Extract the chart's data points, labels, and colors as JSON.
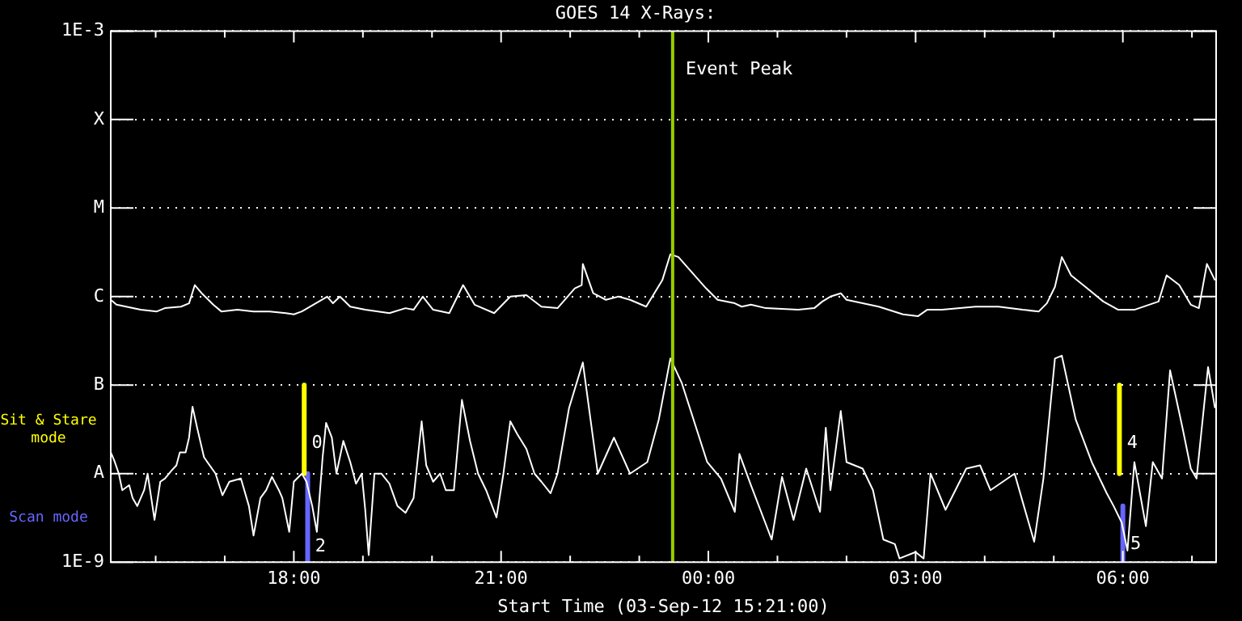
{
  "chart_data": {
    "type": "line",
    "title": "GOES 14 X-Rays:",
    "xlabel": "Start Time (03-Sep-12 15:21:00)",
    "xlim": [
      "--09-03T15:21",
      "--09-04T07:21"
    ],
    "xticks": [
      {
        "value": "--09-03T16:00",
        "label": null
      },
      {
        "value": "--09-03T17:00",
        "label": null
      },
      {
        "value": "--09-03T18:00",
        "label": "18:00"
      },
      {
        "value": "--09-03T19:00",
        "label": null
      },
      {
        "value": "--09-03T20:00",
        "label": null
      },
      {
        "value": "--09-03T21:00",
        "label": "21:00"
      },
      {
        "value": "--09-03T22:00",
        "label": null
      },
      {
        "value": "--09-03T23:00",
        "label": null
      },
      {
        "value": "--09-04T00:00",
        "label": "00:00"
      },
      {
        "value": "--09-04T01:00",
        "label": null
      },
      {
        "value": "--09-04T02:00",
        "label": null
      },
      {
        "value": "--09-04T03:00",
        "label": "03:00"
      },
      {
        "value": "--09-04T04:00",
        "label": null
      },
      {
        "value": "--09-04T05:00",
        "label": null
      },
      {
        "value": "--09-04T06:00",
        "label": "06:00"
      },
      {
        "value": "--09-04T07:00",
        "label": null
      }
    ],
    "ylim": [
      1e-09,
      0.001
    ],
    "yticks": [
      {
        "value": 1e-09,
        "label": "1E-9"
      },
      {
        "value": 1e-08,
        "label": "A"
      },
      {
        "value": 1e-07,
        "label": "B"
      },
      {
        "value": 1e-06,
        "label": "C"
      },
      {
        "value": 1e-05,
        "label": "M"
      },
      {
        "value": 0.0001,
        "label": "X"
      },
      {
        "value": 0.001,
        "label": "1E-3"
      }
    ],
    "log": true,
    "grid": "y",
    "marker": "none",
    "series": [
      {
        "color": "#ffffff",
        "x": [
          "--09-03T15:21",
          "--09-03T15:26",
          "--09-03T15:47",
          "--09-03T16:01",
          "--09-03T16:08",
          "--09-03T16:22",
          "--09-03T16:29",
          "--09-03T16:34",
          "--09-03T16:40",
          "--09-03T16:50",
          "--09-03T16:57",
          "--09-03T17:11",
          "--09-03T17:25",
          "--09-03T17:39",
          "--09-03T17:53",
          "--09-03T18:00",
          "--09-03T18:07",
          "--09-03T18:29",
          "--09-03T18:34",
          "--09-03T18:40",
          "--09-03T18:49",
          "--09-03T19:02",
          "--09-03T19:23",
          "--09-03T19:37",
          "--09-03T19:44",
          "--09-03T19:52",
          "--09-03T20:01",
          "--09-03T20:15",
          "--09-03T20:27",
          "--09-03T20:37",
          "--09-03T20:54",
          "--09-03T21:08",
          "--09-03T21:22",
          "--09-03T21:35",
          "--09-03T21:49",
          "--09-03T22:04",
          "--09-03T22:10",
          "--09-03T22:11",
          "--09-03T22:20",
          "--09-03T22:31",
          "--09-03T22:42",
          "--09-03T22:52",
          "--09-03T23:06",
          "--09-03T23:20",
          "--09-03T23:27",
          "--09-03T23:34",
          "--09-03T23:47",
          "--09-03T23:58",
          "--09-04T00:08",
          "--09-04T00:23",
          "--09-04T00:29",
          "--09-04T00:37",
          "--09-04T00:50",
          "--09-04T01:18",
          "--09-04T01:32",
          "--09-04T01:39",
          "--09-04T01:46",
          "--09-04T01:55",
          "--09-04T02:00",
          "--09-04T02:28",
          "--09-04T02:49",
          "--09-04T03:02",
          "--09-04T03:10",
          "--09-04T03:23",
          "--09-04T03:52",
          "--09-04T04:12",
          "--09-04T04:33",
          "--09-04T04:47",
          "--09-04T04:54",
          "--09-04T05:01",
          "--09-04T05:07",
          "--09-04T05:15",
          "--09-04T05:29",
          "--09-04T05:43",
          "--09-04T05:56",
          "--09-04T06:10",
          "--09-04T06:31",
          "--09-04T06:38",
          "--09-04T06:49",
          "--09-04T06:59",
          "--09-04T07:06",
          "--09-04T07:13",
          "--09-04T07:20"
        ],
        "values": [
          9.2e-07,
          8.1e-07,
          7.1e-07,
          6.8e-07,
          7.4e-07,
          7.7e-07,
          8.4e-07,
          1.35e-06,
          1.09e-06,
          8.1e-07,
          6.8e-07,
          7.1e-07,
          6.8e-07,
          6.8e-07,
          6.5e-07,
          6.3e-07,
          6.8e-07,
          1e-06,
          8.4e-07,
          1e-06,
          7.7e-07,
          7.1e-07,
          6.5e-07,
          7.4e-07,
          7.1e-07,
          1e-06,
          7.1e-07,
          6.5e-07,
          1.35e-06,
          8.1e-07,
          6.5e-07,
          1e-06,
          1.04e-06,
          7.7e-07,
          7.4e-07,
          1.24e-06,
          1.35e-06,
          2.34e-06,
          1.09e-06,
          9.2e-07,
          1e-06,
          9.2e-07,
          7.7e-07,
          1.53e-06,
          3e-06,
          2.8e-06,
          1.8e-06,
          1.24e-06,
          9.2e-07,
          8.4e-07,
          7.7e-07,
          8.1e-07,
          7.4e-07,
          7.1e-07,
          7.4e-07,
          8.8e-07,
          1e-06,
          1.09e-06,
          9.2e-07,
          7.7e-07,
          6.3e-07,
          6e-07,
          7.1e-07,
          7.1e-07,
          7.7e-07,
          7.7e-07,
          7.1e-07,
          6.8e-07,
          8.4e-07,
          1.29e-06,
          2.8e-06,
          1.74e-06,
          1.24e-06,
          8.8e-07,
          7.1e-07,
          7.1e-07,
          8.8e-07,
          1.74e-06,
          1.35e-06,
          8.1e-07,
          7.4e-07,
          2.34e-06,
          1.53e-06
        ]
      },
      {
        "color": "#ffffff",
        "x": [
          "--09-03T15:21",
          "--09-03T15:24",
          "--09-03T15:28",
          "--09-03T15:31",
          "--09-03T15:37",
          "--09-03T15:40",
          "--09-03T15:44",
          "--09-03T15:50",
          "--09-03T15:53",
          "--09-03T15:56",
          "--09-03T15:59",
          "--09-03T16:04",
          "--09-03T16:08",
          "--09-03T16:14",
          "--09-03T16:18",
          "--09-03T16:21",
          "--09-03T16:26",
          "--09-03T16:29",
          "--09-03T16:32",
          "--09-03T16:36",
          "--09-03T16:42",
          "--09-03T16:52",
          "--09-03T16:58",
          "--09-03T17:04",
          "--09-03T17:14",
          "--09-03T17:21",
          "--09-03T17:25",
          "--09-03T17:31",
          "--09-03T17:36",
          "--09-03T17:41",
          "--09-03T17:47",
          "--09-03T17:50",
          "--09-03T17:56",
          "--09-03T18:00",
          "--09-03T18:07",
          "--09-03T18:11",
          "--09-03T18:16",
          "--09-03T18:20",
          "--09-03T18:25",
          "--09-03T18:28",
          "--09-03T18:33",
          "--09-03T18:37",
          "--09-03T18:43",
          "--09-03T18:49",
          "--09-03T18:54",
          "--09-03T18:59",
          "--09-03T19:02",
          "--09-03T19:05",
          "--09-03T19:10",
          "--09-03T19:16",
          "--09-03T19:23",
          "--09-03T19:30",
          "--09-03T19:37",
          "--09-03T19:44",
          "--09-03T19:51",
          "--09-03T19:55",
          "--09-03T20:01",
          "--09-03T20:07",
          "--09-03T20:12",
          "--09-03T20:19",
          "--09-03T20:26",
          "--09-03T20:33",
          "--09-03T20:40",
          "--09-03T20:47",
          "--09-03T20:56",
          "--09-03T21:02",
          "--09-03T21:08",
          "--09-03T21:14",
          "--09-03T21:22",
          "--09-03T21:29",
          "--09-03T21:35",
          "--09-03T21:43",
          "--09-03T21:49",
          "--09-03T21:59",
          "--09-03T22:11",
          "--09-03T22:24",
          "--09-03T22:38",
          "--09-03T22:52",
          "--09-03T23:07",
          "--09-03T23:17",
          "--09-03T23:27",
          "--09-03T23:37",
          "--09-03T23:59",
          "--09-04T00:11",
          "--09-04T00:23",
          "--09-04T00:27",
          "--09-04T00:37",
          "--09-04T00:55",
          "--09-04T01:04",
          "--09-04T01:14",
          "--09-04T01:25",
          "--09-04T01:37",
          "--09-04T01:42",
          "--09-04T01:46",
          "--09-04T01:55",
          "--09-04T02:00",
          "--09-04T02:14",
          "--09-04T02:23",
          "--09-04T02:32",
          "--09-04T02:42",
          "--09-04T02:46",
          "--09-04T03:00",
          "--09-04T03:07",
          "--09-04T03:13",
          "--09-04T03:26",
          "--09-04T03:44",
          "--09-04T03:56",
          "--09-04T04:05",
          "--09-04T04:26",
          "--09-04T04:33",
          "--09-04T04:43",
          "--09-04T04:51",
          "--09-04T05:01",
          "--09-04T05:07",
          "--09-04T05:19",
          "--09-04T05:33",
          "--09-04T05:46",
          "--09-04T05:52",
          "--09-04T05:59",
          "--09-04T06:04",
          "--09-04T06:10",
          "--09-04T06:20",
          "--09-04T06:26",
          "--09-04T06:34",
          "--09-04T06:41",
          "--09-04T06:52",
          "--09-04T06:59",
          "--09-04T07:04",
          "--09-04T07:14",
          "--09-04T07:20"
        ],
        "values": [
          1.74e-08,
          1.41e-08,
          1e-08,
          6.5e-09,
          7.4e-09,
          5.3e-09,
          4.3e-09,
          6.5e-09,
          1e-08,
          5.5e-09,
          3e-09,
          8.1e-09,
          8.8e-09,
          1.09e-08,
          1.24e-08,
          1.74e-08,
          1.74e-08,
          2.55e-08,
          5.7e-08,
          3.3e-08,
          1.53e-08,
          1e-08,
          5.7e-09,
          8.1e-09,
          8.8e-09,
          4.3e-09,
          2e-09,
          5.3e-09,
          6.5e-09,
          9.2e-09,
          6.5e-09,
          5.3e-09,
          2.2e-09,
          8.1e-09,
          1e-08,
          8.1e-09,
          4.3e-09,
          2.2e-09,
          1.53e-08,
          3.75e-08,
          2.55e-08,
          1e-08,
          2.34e-08,
          1.35e-08,
          7.7e-09,
          1e-08,
          3.9e-09,
          1.2e-09,
          1e-08,
          1e-08,
          7.7e-09,
          4.3e-09,
          3.6e-09,
          5.3e-09,
          3.9e-08,
          1.24e-08,
          8.1e-09,
          1e-08,
          6.5e-09,
          6.5e-09,
          6.8e-08,
          2.34e-08,
          1e-08,
          6.5e-09,
          3.2e-09,
          1e-08,
          3.9e-08,
          2.8e-08,
          1.9e-08,
          1e-08,
          8.1e-09,
          6e-09,
          1e-08,
          5.5e-08,
          1.8e-07,
          1e-08,
          2.55e-08,
          1e-08,
          1.35e-08,
          4.1e-08,
          2e-07,
          1.05e-07,
          1.35e-08,
          8.8e-09,
          3.7e-09,
          1.67e-08,
          7.4e-09,
          1.8e-09,
          9.2e-09,
          3e-09,
          1.14e-08,
          3.7e-09,
          3.3e-08,
          6.5e-09,
          5.1e-08,
          1.35e-08,
          1.14e-08,
          6.5e-09,
          1.8e-09,
          1.6e-09,
          1.1e-09,
          1.3e-09,
          1.1e-09,
          1e-08,
          3.9e-09,
          1.14e-08,
          1.24e-08,
          6.5e-09,
          1e-08,
          4.8e-09,
          1.7e-09,
          8.8e-09,
          2e-07,
          2.15e-07,
          4.1e-08,
          1.35e-08,
          6e-09,
          4.3e-09,
          2.8e-09,
          1.35e-09,
          1.35e-08,
          2.55e-09,
          1.35e-08,
          8.8e-09,
          1.47e-07,
          3.2e-08,
          1.14e-08,
          8.8e-09,
          1.6e-07,
          5.5e-08
        ]
      },
      {
        "name": "Sit & Stare mode",
        "color": "#ffff00",
        "x": [
          "--09-03T18:09",
          "--09-03T18:09",
          "--09-04T00:00",
          "--09-04T05:57",
          "--09-04T05:57"
        ],
        "values": [
          1e-07,
          1e-08,
          null,
          1e-07,
          1e-08
        ]
      },
      {
        "name": "Scan mode",
        "color": "#6666ff",
        "x": [
          "--09-03T18:12",
          "--09-03T18:12",
          "--09-04T00:00",
          "--09-04T06:00",
          "--09-04T06:00"
        ],
        "values": [
          1e-08,
          1e-09,
          null,
          4.3e-09,
          1e-09
        ]
      }
    ],
    "ref_lines": [
      {
        "axis": "x",
        "value": "--09-03T23:29",
        "label": "Event Peak",
        "color": "#99cc00"
      }
    ],
    "annotations": [
      {
        "text": "0",
        "x": "--09-03T18:09",
        "y": 2.2e-08
      },
      {
        "text": "2",
        "x": "--09-03T18:12",
        "y": 1.5e-09
      },
      {
        "text": "4",
        "x": "--09-04T05:57",
        "y": 2.2e-08
      },
      {
        "text": "5",
        "x": "--09-04T06:00",
        "y": 1.6e-09
      }
    ]
  }
}
